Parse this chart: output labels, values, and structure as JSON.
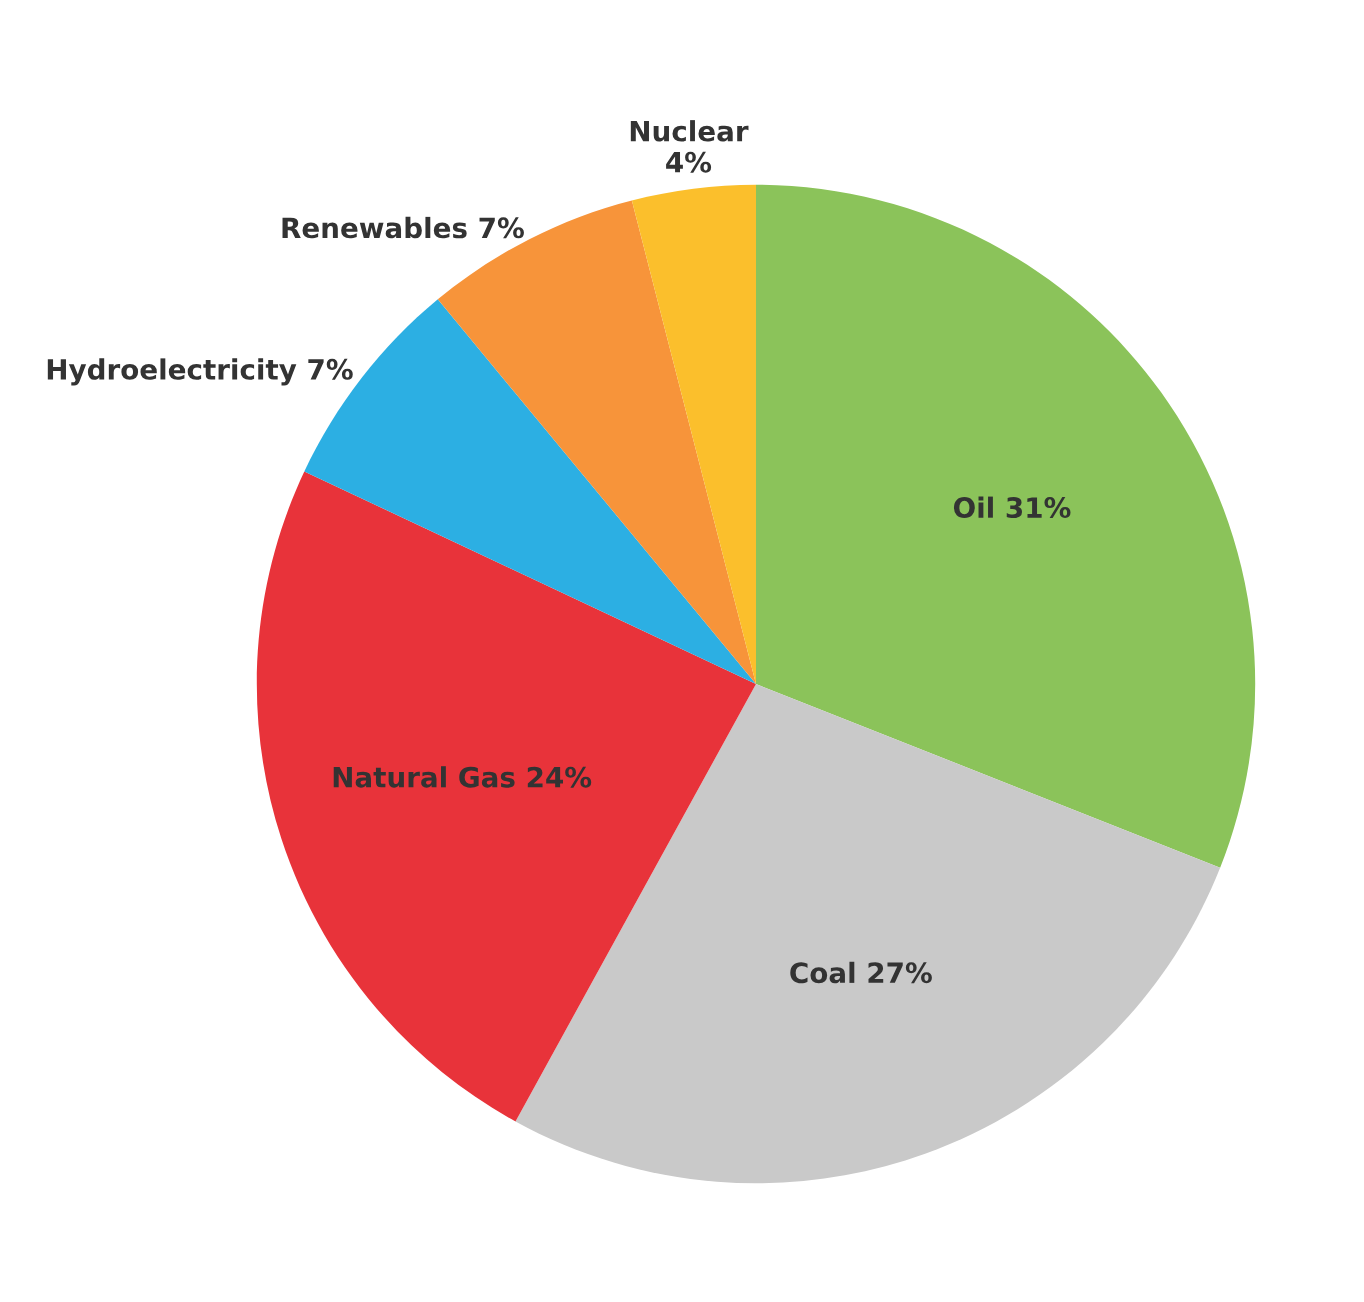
{
  "chart_data": {
    "type": "pie",
    "categories": [
      "Oil",
      "Coal",
      "Natural Gas",
      "Hydroelectricity",
      "Renewables",
      "Nuclear"
    ],
    "values": [
      31,
      27,
      24,
      7,
      7,
      4
    ],
    "colors": [
      "#8bc35a",
      "#c9c9c9",
      "#e8333a",
      "#2cafe3",
      "#f7943a",
      "#fbbf2c"
    ],
    "value_labels": [
      "31%",
      "27%",
      "24%",
      "7%",
      "7%",
      "4%"
    ]
  }
}
